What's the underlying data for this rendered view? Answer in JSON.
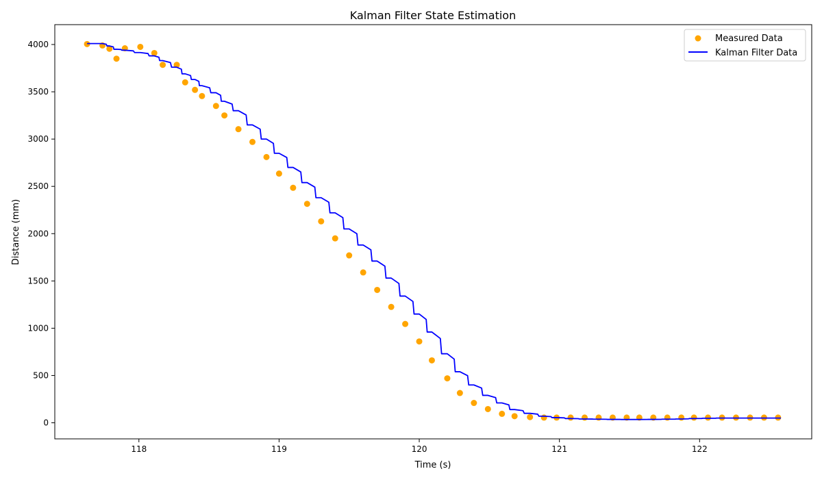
{
  "chart_data": {
    "type": "line",
    "title": "Kalman Filter State Estimation",
    "xlabel": "Time (s)",
    "ylabel": "Distance (mm)",
    "xlim": [
      117.4,
      122.8
    ],
    "ylim": [
      -170,
      4210
    ],
    "xticks": [
      118,
      119,
      120,
      121,
      122
    ],
    "yticks": [
      0,
      500,
      1000,
      1500,
      2000,
      2500,
      3000,
      3500,
      4000
    ],
    "grid": false,
    "legend": {
      "placement": "top-right",
      "entries": [
        "Measured Data",
        "Kalman Filter Data"
      ]
    },
    "colors": {
      "measured": "#FFA500",
      "kalman": "#0000FF"
    },
    "series": [
      {
        "name": "Measured Data",
        "type": "scatter",
        "x": [
          117.63,
          117.74,
          117.79,
          117.84,
          117.9,
          118.01,
          118.11,
          118.17,
          118.27,
          118.33,
          118.4,
          118.45,
          118.55,
          118.61,
          118.71,
          118.81,
          118.91,
          119.0,
          119.1,
          119.2,
          119.3,
          119.4,
          119.5,
          119.6,
          119.7,
          119.8,
          119.9,
          120.0,
          120.09,
          120.2,
          120.29,
          120.39,
          120.49,
          120.59,
          120.68,
          120.79,
          120.89,
          120.98,
          121.08,
          121.18,
          121.28,
          121.38,
          121.48,
          121.57,
          121.67,
          121.77,
          121.87,
          121.96,
          122.06,
          122.16,
          122.26,
          122.36,
          122.46,
          122.56
        ],
        "y": [
          4005,
          3990,
          3955,
          3850,
          3960,
          3975,
          3910,
          3785,
          3785,
          3600,
          3520,
          3455,
          3350,
          3250,
          3105,
          2970,
          2810,
          2635,
          2485,
          2315,
          2130,
          1950,
          1770,
          1590,
          1405,
          1225,
          1045,
          860,
          660,
          470,
          315,
          210,
          145,
          95,
          70,
          60,
          55,
          55,
          55,
          55,
          55,
          55,
          55,
          55,
          55,
          55,
          55,
          55,
          55,
          55,
          55,
          55,
          55,
          55
        ]
      },
      {
        "name": "Kalman Filter Data",
        "type": "line",
        "x": [
          117.63,
          117.74,
          117.79,
          117.84,
          117.9,
          118.01,
          118.11,
          118.17,
          118.27,
          118.33,
          118.4,
          118.45,
          118.55,
          118.61,
          118.71,
          118.81,
          118.91,
          119.0,
          119.1,
          119.2,
          119.3,
          119.4,
          119.5,
          119.6,
          119.7,
          119.8,
          119.9,
          120.0,
          120.09,
          120.2,
          120.29,
          120.39,
          120.49,
          120.59,
          120.68,
          120.79,
          120.89,
          120.98,
          121.08,
          121.18,
          121.28,
          121.38,
          121.48,
          121.57,
          121.67,
          121.77,
          121.87,
          121.96,
          122.06,
          122.16,
          122.26,
          122.36,
          122.46,
          122.58
        ],
        "y": [
          4010,
          4010,
          3985,
          3950,
          3940,
          3915,
          3880,
          3830,
          3760,
          3690,
          3630,
          3565,
          3490,
          3400,
          3300,
          3150,
          3000,
          2850,
          2700,
          2540,
          2380,
          2220,
          2050,
          1880,
          1710,
          1530,
          1340,
          1150,
          960,
          730,
          540,
          400,
          290,
          210,
          140,
          100,
          70,
          55,
          45,
          40,
          38,
          36,
          35,
          35,
          36,
          38,
          40,
          45,
          48,
          50,
          50,
          50,
          50,
          50
        ]
      }
    ]
  }
}
